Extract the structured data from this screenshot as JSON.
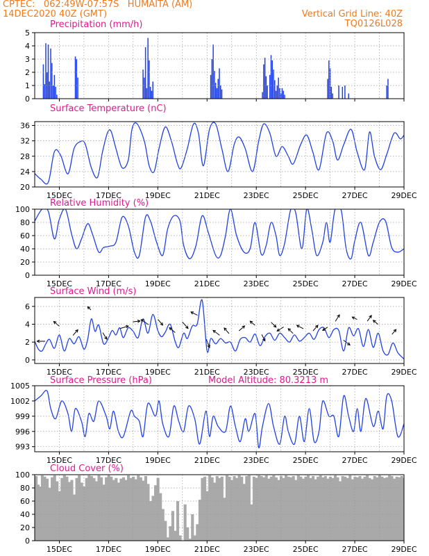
{
  "header": {
    "line1_left": "CPTEC:   062:49W-07:57S   HUMAITA (AM)",
    "line2_left": "14DEC2020 40Z (GMT)",
    "line1_right": "Vertical Grid Line: 40Z",
    "line2_right": "TQ0126L028"
  },
  "colors": {
    "header": "#f07a1a",
    "title": "#e0198f",
    "series": "#1f3fe6",
    "bars": "#1f3fe6",
    "cloud": "#a9a9a9",
    "arrows": "#000000",
    "grid": "#9a9a9a"
  },
  "x_axis": {
    "start": 14.0,
    "end": 29.0,
    "ticks": [
      15,
      17,
      19,
      21,
      23,
      25,
      27,
      29
    ],
    "labels": [
      "15DEC",
      "17DEC",
      "19DEC",
      "21DEC",
      "23DEC",
      "25DEC",
      "27DEC",
      "29DEC"
    ],
    "grid": [
      15,
      16,
      17,
      18,
      19,
      20,
      21,
      22,
      23,
      24,
      25,
      26,
      27,
      28,
      29
    ]
  },
  "chart_data": [
    {
      "id": "precip",
      "type": "bar",
      "title": "Precipitation (mm/h)",
      "ylim": [
        0,
        5
      ],
      "yticks": [
        0,
        1,
        2,
        3,
        4,
        5
      ],
      "x": [
        14.35,
        14.4,
        14.45,
        14.5,
        14.55,
        14.6,
        14.65,
        14.7,
        14.75,
        14.8,
        14.85,
        14.9,
        15.65,
        15.7,
        15.75,
        18.4,
        18.45,
        18.5,
        18.55,
        18.6,
        18.65,
        18.7,
        18.75,
        18.8,
        21.15,
        21.2,
        21.25,
        21.3,
        21.35,
        21.4,
        21.45,
        21.5,
        21.55,
        21.6,
        23.25,
        23.3,
        23.35,
        23.4,
        23.45,
        23.55,
        23.6,
        23.65,
        23.7,
        23.75,
        23.8,
        23.85,
        23.9,
        23.95,
        24.0,
        24.05,
        24.1,
        24.15,
        25.9,
        25.95,
        26.0,
        26.05,
        26.1,
        26.35,
        26.5,
        26.6,
        26.75,
        28.3,
        28.35
      ],
      "values": [
        2.6,
        1.1,
        4.2,
        2.0,
        4.1,
        1.3,
        3.8,
        2.7,
        1.0,
        1.8,
        0.9,
        0.3,
        3.2,
        3.0,
        1.6,
        2.2,
        1.6,
        3.9,
        0.8,
        4.6,
        2.9,
        0.9,
        0.6,
        1.3,
        1.8,
        3.0,
        4.1,
        2.1,
        1.2,
        0.8,
        1.5,
        2.3,
        1.0,
        0.7,
        0.5,
        2.6,
        3.1,
        1.7,
        1.0,
        1.8,
        3.3,
        2.9,
        2.2,
        1.4,
        0.6,
        1.0,
        1.6,
        0.8,
        0.4,
        0.8,
        0.6,
        0.3,
        1.5,
        2.9,
        2.3,
        0.9,
        0.4,
        1.0,
        0.9,
        1.0,
        0.4,
        1.0,
        1.5
      ]
    },
    {
      "id": "temp",
      "type": "line",
      "title": "Surface Temperature (nC)",
      "ylim": [
        20,
        37
      ],
      "yticks": [
        20,
        24,
        28,
        32,
        36
      ],
      "x": [
        14.0,
        14.25,
        14.55,
        14.8,
        15.05,
        15.35,
        15.6,
        15.85,
        16.05,
        16.3,
        16.55,
        16.75,
        16.95,
        17.1,
        17.3,
        17.55,
        17.8,
        17.95,
        18.15,
        18.45,
        18.65,
        18.85,
        19.05,
        19.3,
        19.55,
        19.8,
        19.95,
        20.2,
        20.45,
        20.65,
        20.85,
        21.1,
        21.35,
        21.6,
        21.85,
        22.1,
        22.3,
        22.55,
        22.85,
        23.1,
        23.3,
        23.55,
        23.8,
        24.05,
        24.3,
        24.5,
        24.8,
        25.05,
        25.3,
        25.55,
        25.85,
        26.1,
        26.3,
        26.55,
        26.85,
        27.1,
        27.4,
        27.6,
        27.8,
        28.05,
        28.3,
        28.6,
        28.85,
        29.0
      ],
      "values": [
        23.5,
        22.0,
        21.2,
        29.2,
        28.3,
        23.4,
        30.0,
        31.8,
        31.2,
        25.0,
        22.5,
        29.0,
        34.0,
        34.5,
        30.0,
        25.0,
        27.0,
        35.0,
        36.5,
        32.0,
        25.5,
        24.0,
        30.0,
        35.6,
        32.0,
        26.0,
        25.0,
        30.0,
        36.4,
        34.0,
        25.5,
        35.0,
        36.4,
        30.0,
        24.0,
        31.0,
        33.0,
        30.0,
        24.0,
        32.0,
        36.4,
        34.0,
        28.0,
        30.5,
        28.0,
        26.0,
        31.0,
        33.5,
        29.0,
        24.5,
        34.0,
        32.0,
        27.0,
        31.0,
        35.0,
        29.0,
        24.5,
        34.3,
        28.0,
        24.5,
        28.5,
        34.0,
        32.5,
        33.5
      ]
    },
    {
      "id": "rh",
      "type": "line",
      "title": "Relative Humidity (%)",
      "ylim": [
        0,
        100
      ],
      "yticks": [
        0,
        20,
        40,
        60,
        80,
        100
      ],
      "x": [
        14.0,
        14.3,
        14.55,
        14.8,
        15.0,
        15.25,
        15.5,
        15.7,
        15.9,
        16.15,
        16.35,
        16.6,
        16.8,
        17.05,
        17.3,
        17.55,
        17.8,
        18.05,
        18.25,
        18.5,
        18.7,
        18.95,
        19.2,
        19.4,
        19.65,
        19.9,
        20.05,
        20.3,
        20.55,
        20.8,
        21.05,
        21.35,
        21.55,
        21.75,
        21.95,
        22.2,
        22.5,
        22.75,
        22.95,
        23.2,
        23.4,
        23.6,
        23.8,
        23.95,
        24.15,
        24.4,
        24.6,
        24.85,
        25.05,
        25.25,
        25.45,
        25.7,
        25.85,
        26.0,
        26.2,
        26.45,
        26.65,
        26.85,
        27.0,
        27.25,
        27.55,
        27.75,
        28.0,
        28.25,
        28.5,
        28.75,
        29.0
      ],
      "values": [
        82,
        100,
        97,
        55,
        85,
        100,
        62,
        40,
        55,
        78,
        62,
        35,
        42,
        44,
        50,
        88,
        75,
        35,
        30,
        88,
        82,
        50,
        30,
        70,
        90,
        82,
        45,
        25,
        45,
        90,
        65,
        30,
        30,
        60,
        100,
        60,
        35,
        40,
        80,
        32,
        45,
        80,
        60,
        30,
        48,
        100,
        95,
        40,
        100,
        70,
        30,
        50,
        80,
        50,
        100,
        98,
        40,
        25,
        52,
        80,
        30,
        50,
        80,
        82,
        42,
        35,
        40
      ]
    },
    {
      "id": "wind",
      "type": "line",
      "title": "Surface Wind (m/s)",
      "ylim": [
        -0.4,
        7.0
      ],
      "yticks": [
        0,
        2,
        4,
        6
      ],
      "x": [
        14.0,
        14.15,
        14.3,
        14.45,
        14.6,
        14.8,
        15.0,
        15.2,
        15.4,
        15.6,
        15.8,
        16.0,
        16.15,
        16.3,
        16.45,
        16.6,
        16.8,
        17.0,
        17.15,
        17.3,
        17.45,
        17.6,
        17.8,
        18.0,
        18.2,
        18.4,
        18.6,
        18.8,
        19.0,
        19.15,
        19.3,
        19.5,
        19.7,
        19.85,
        20.05,
        20.2,
        20.4,
        20.6,
        20.8,
        21.0,
        21.15,
        21.35,
        21.55,
        21.75,
        21.95,
        22.15,
        22.35,
        22.55,
        22.75,
        22.95,
        23.15,
        23.35,
        23.55,
        23.75,
        23.95,
        24.15,
        24.35,
        24.55,
        24.75,
        24.95,
        25.15,
        25.35,
        25.55,
        25.75,
        25.95,
        26.15,
        26.35,
        26.55,
        26.75,
        26.95,
        27.15,
        27.35,
        27.55,
        27.75,
        27.95,
        28.15,
        28.35,
        28.55,
        28.75,
        29.0
      ],
      "values": [
        2.1,
        1.2,
        1.0,
        1.8,
        2.3,
        1.3,
        2.8,
        1.0,
        2.4,
        1.8,
        2.6,
        1.2,
        2.3,
        4.6,
        3.2,
        3.9,
        1.8,
        2.5,
        3.3,
        2.8,
        3.6,
        2.5,
        3.6,
        3.2,
        2.5,
        4.6,
        3.0,
        5.1,
        3.3,
        2.6,
        3.1,
        4.0,
        2.1,
        1.4,
        3.0,
        2.4,
        3.8,
        4.0,
        6.7,
        1.0,
        2.4,
        1.8,
        2.4,
        1.9,
        2.0,
        1.0,
        2.3,
        2.5,
        2.0,
        2.9,
        1.6,
        2.6,
        3.0,
        2.2,
        3.0,
        2.5,
        2.0,
        2.8,
        2.1,
        2.5,
        3.0,
        2.3,
        3.4,
        3.6,
        2.5,
        3.4,
        3.3,
        1.0,
        3.6,
        2.7,
        3.5,
        1.5,
        3.4,
        1.4,
        3.0,
        1.0,
        0.6,
        1.9,
        0.8,
        0.1
      ],
      "arrows_x": [
        14.35,
        14.95,
        15.6,
        16.25,
        16.8,
        17.55,
        18.05,
        18.55,
        19.05,
        19.65,
        20.05,
        20.55,
        21.0,
        21.45,
        21.85,
        22.35,
        22.9,
        23.25,
        23.65,
        24.05,
        24.45,
        24.85,
        25.35,
        25.85,
        26.25,
        26.6,
        27.05,
        27.55,
        27.9,
        28.55
      ],
      "arrows_u": [
        -1.0,
        -0.7,
        0.6,
        -0.4,
        0.5,
        1.0,
        0.9,
        -0.9,
        0.6,
        -0.7,
        0.7,
        -0.8,
        0.4,
        -0.8,
        -0.6,
        0.7,
        -0.6,
        0.4,
        0.6,
        -0.8,
        -0.6,
        -0.8,
        0.6,
        -0.6,
        0.5,
        0.8,
        -0.6,
        0.5,
        -0.6,
        0.5
      ],
      "arrows_v": [
        0.0,
        0.6,
        0.7,
        0.4,
        -0.8,
        0.3,
        0.1,
        0.6,
        -0.7,
        0.6,
        -0.8,
        0.4,
        -1.0,
        0.6,
        0.7,
        0.6,
        0.5,
        -0.8,
        -0.6,
        -0.5,
        0.6,
        0.4,
        0.7,
        -0.4,
        0.8,
        -0.6,
        0.3,
        0.7,
        0.5,
        0.6
      ]
    },
    {
      "id": "pres",
      "type": "line",
      "title": "Surface Pressure (hPa)",
      "annotation": "Model Altitude: 80.3213 m",
      "ylim": [
        992,
        1005
      ],
      "yticks": [
        993,
        996,
        999,
        1002,
        1005
      ],
      "x": [
        14.0,
        14.25,
        14.5,
        14.65,
        14.85,
        15.1,
        15.35,
        15.5,
        15.65,
        15.9,
        16.05,
        16.2,
        16.4,
        16.6,
        16.9,
        17.05,
        17.2,
        17.4,
        17.6,
        17.9,
        18.05,
        18.25,
        18.4,
        18.6,
        18.9,
        19.05,
        19.2,
        19.45,
        19.65,
        19.85,
        20.05,
        20.25,
        20.5,
        20.7,
        20.95,
        21.1,
        21.25,
        21.45,
        21.75,
        21.95,
        22.15,
        22.35,
        22.55,
        22.7,
        22.95,
        23.1,
        23.25,
        23.5,
        23.7,
        23.95,
        24.15,
        24.3,
        24.55,
        24.75,
        24.95,
        25.15,
        25.35,
        25.55,
        25.7,
        25.95,
        26.15,
        26.35,
        26.55,
        26.75,
        26.95,
        27.1,
        27.25,
        27.45,
        27.75,
        27.95,
        28.15,
        28.3,
        28.5,
        28.75,
        29.0
      ],
      "values": [
        1002.0,
        1003.0,
        1004.0,
        1000.5,
        998.5,
        1002.0,
        999.5,
        996.0,
        1000.5,
        998.0,
        995.0,
        999.5,
        998.0,
        1002.0,
        999.0,
        996.5,
        1000.0,
        996.0,
        995.0,
        1000.0,
        999.0,
        998.0,
        995.0,
        1001.5,
        999.0,
        1002.0,
        997.5,
        995.0,
        1001.0,
        998.0,
        996.0,
        1001.0,
        998.5,
        993.5,
        1000.0,
        995.0,
        999.0,
        997.0,
        996.0,
        1001.0,
        997.0,
        994.0,
        998.5,
        996.0,
        999.5,
        992.8,
        997.0,
        1001.5,
        997.0,
        993.5,
        999.0,
        996.0,
        993.5,
        999.0,
        994.0,
        1000.5,
        994.0,
        996.0,
        1002.0,
        999.0,
        999.0,
        995.0,
        1003.0,
        999.0,
        996.0,
        1000.5,
        996.0,
        1002.5,
        997.0,
        1000.0,
        996.5,
        1003.0,
        1002.0,
        995.0,
        997.5
      ]
    },
    {
      "id": "cloud",
      "type": "area",
      "title": "Cloud Cover (%)",
      "ylim": [
        0,
        100
      ],
      "yticks": [
        0,
        20,
        40,
        60,
        80,
        100
      ],
      "x": [
        14.0,
        14.08,
        14.15,
        14.25,
        14.35,
        14.45,
        14.55,
        14.65,
        14.75,
        14.85,
        14.95,
        15.05,
        15.15,
        15.25,
        15.35,
        15.45,
        15.55,
        15.65,
        15.75,
        15.85,
        15.95,
        16.05,
        16.15,
        16.25,
        16.35,
        16.45,
        16.55,
        16.65,
        16.75,
        16.85,
        16.95,
        17.05,
        17.15,
        17.25,
        17.35,
        17.45,
        17.55,
        17.65,
        17.75,
        17.85,
        17.95,
        18.05,
        18.15,
        18.25,
        18.35,
        18.45,
        18.55,
        18.65,
        18.75,
        18.85,
        18.95,
        19.05,
        19.15,
        19.25,
        19.35,
        19.45,
        19.55,
        19.65,
        19.75,
        19.85,
        19.95,
        20.05,
        20.15,
        20.25,
        20.35,
        20.45,
        20.55,
        20.65,
        20.75,
        20.85,
        20.95,
        21.05,
        21.15,
        21.25,
        21.35,
        21.45,
        21.55,
        21.65,
        21.75,
        21.85,
        21.95,
        22.05,
        22.15,
        22.25,
        22.35,
        22.45,
        22.55,
        22.65,
        22.75,
        22.85,
        22.95,
        23.05,
        23.15,
        23.25,
        23.35,
        23.45,
        23.55,
        23.65,
        23.75,
        23.85,
        23.95,
        24.05,
        24.15,
        24.25,
        24.35,
        24.45,
        24.55,
        24.65,
        24.75,
        24.85,
        24.95,
        25.05,
        25.15,
        25.25,
        25.35,
        25.45,
        25.55,
        25.65,
        25.75,
        25.85,
        25.95,
        26.05,
        26.15,
        26.25,
        26.35,
        26.45,
        26.55,
        26.65,
        26.75,
        26.85,
        26.95,
        27.05,
        27.15,
        27.25,
        27.35,
        27.45,
        27.55,
        27.65,
        27.75,
        27.85,
        27.95,
        28.05,
        28.15,
        28.25,
        28.35,
        28.45,
        28.55,
        28.65,
        28.75,
        28.85,
        28.95
      ],
      "values": [
        98,
        85,
        82,
        99,
        97,
        94,
        80,
        96,
        99,
        90,
        75,
        95,
        99,
        97,
        89,
        92,
        70,
        95,
        99,
        88,
        82,
        95,
        99,
        98,
        95,
        90,
        99,
        96,
        85,
        96,
        99,
        97,
        92,
        95,
        88,
        94,
        96,
        92,
        99,
        95,
        97,
        93,
        99,
        96,
        91,
        98,
        86,
        60,
        68,
        84,
        95,
        72,
        48,
        30,
        5,
        22,
        45,
        15,
        60,
        8,
        0,
        55,
        20,
        3,
        40,
        8,
        25,
        62,
        95,
        97,
        75,
        99,
        96,
        88,
        98,
        95,
        97,
        65,
        99,
        97,
        92,
        98,
        95,
        99,
        97,
        86,
        98,
        99,
        55,
        97,
        95,
        99,
        98,
        96,
        99,
        94,
        97,
        99,
        96,
        92,
        98,
        95,
        99,
        97,
        96,
        98,
        92,
        99,
        97,
        94,
        97,
        99,
        95,
        98,
        93,
        97,
        99,
        96,
        98,
        94,
        97,
        95,
        99,
        96,
        90,
        98,
        97,
        95,
        99,
        93,
        97,
        96,
        98,
        94,
        97,
        99,
        95,
        93,
        98,
        96,
        99,
        97,
        95,
        96,
        99,
        98,
        94,
        97,
        96,
        98,
        95
      ]
    }
  ]
}
